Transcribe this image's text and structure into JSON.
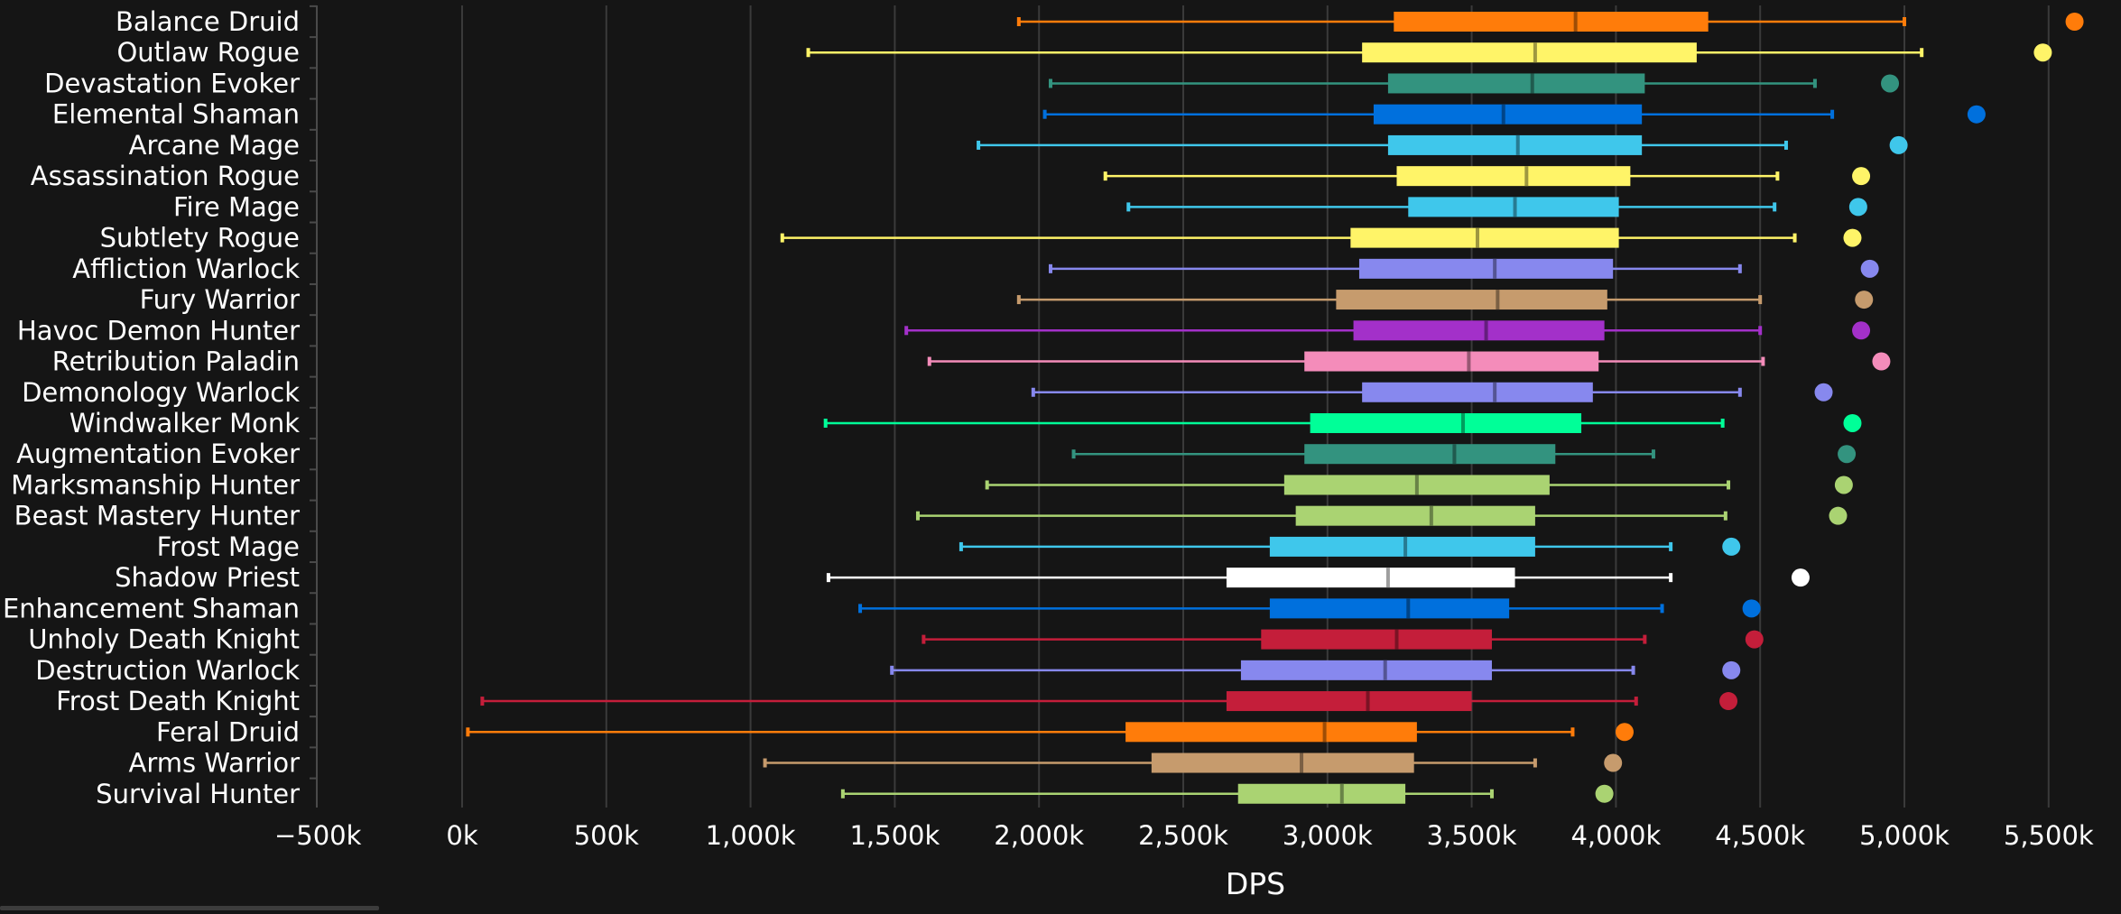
{
  "chart_data": {
    "type": "box",
    "orientation": "horizontal",
    "xlabel": "DPS",
    "xlim": [
      -500000,
      5700000
    ],
    "xticks": [
      -500000,
      0,
      500000,
      1000000,
      1500000,
      2000000,
      2500000,
      3000000,
      3500000,
      4000000,
      4500000,
      5000000,
      5500000
    ],
    "xtick_labels": [
      "−500k",
      "0k",
      "500k",
      "1,000k",
      "1,500k",
      "2,000k",
      "2,500k",
      "3,000k",
      "3,500k",
      "4,000k",
      "4,500k",
      "5,000k",
      "5,500k"
    ],
    "grid": "vertical",
    "series": [
      {
        "label": "Balance Druid",
        "color": "#FF7C0A",
        "min": 1930000,
        "q1": 3230000,
        "median": 3860000,
        "q3": 4320000,
        "max": 5000000,
        "outlier": 5590000
      },
      {
        "label": "Outlaw Rogue",
        "color": "#FFF468",
        "min": 1200000,
        "q1": 3120000,
        "median": 3720000,
        "q3": 4280000,
        "max": 5060000,
        "outlier": 5480000
      },
      {
        "label": "Devastation Evoker",
        "color": "#33937F",
        "min": 2040000,
        "q1": 3210000,
        "median": 3710000,
        "q3": 4100000,
        "max": 4690000,
        "outlier": 4950000
      },
      {
        "label": "Elemental Shaman",
        "color": "#0070DD",
        "min": 2020000,
        "q1": 3160000,
        "median": 3610000,
        "q3": 4090000,
        "max": 4750000,
        "outlier": 5250000
      },
      {
        "label": "Arcane Mage",
        "color": "#3FC7EB",
        "min": 1790000,
        "q1": 3210000,
        "median": 3660000,
        "q3": 4090000,
        "max": 4590000,
        "outlier": 4980000
      },
      {
        "label": "Assassination Rogue",
        "color": "#FFF468",
        "min": 2230000,
        "q1": 3240000,
        "median": 3690000,
        "q3": 4050000,
        "max": 4560000,
        "outlier": 4850000
      },
      {
        "label": "Fire Mage",
        "color": "#3FC7EB",
        "min": 2310000,
        "q1": 3280000,
        "median": 3650000,
        "q3": 4010000,
        "max": 4550000,
        "outlier": 4840000
      },
      {
        "label": "Subtlety Rogue",
        "color": "#FFF468",
        "min": 1110000,
        "q1": 3080000,
        "median": 3520000,
        "q3": 4010000,
        "max": 4620000,
        "outlier": 4820000
      },
      {
        "label": "Affliction Warlock",
        "color": "#8788EE",
        "min": 2040000,
        "q1": 3110000,
        "median": 3580000,
        "q3": 3990000,
        "max": 4430000,
        "outlier": 4880000
      },
      {
        "label": "Fury Warrior",
        "color": "#C69B6D",
        "min": 1930000,
        "q1": 3030000,
        "median": 3590000,
        "q3": 3970000,
        "max": 4500000,
        "outlier": 4860000
      },
      {
        "label": "Havoc Demon Hunter",
        "color": "#A330C9",
        "min": 1540000,
        "q1": 3090000,
        "median": 3550000,
        "q3": 3960000,
        "max": 4500000,
        "outlier": 4850000
      },
      {
        "label": "Retribution Paladin",
        "color": "#F48CBA",
        "min": 1620000,
        "q1": 2920000,
        "median": 3490000,
        "q3": 3940000,
        "max": 4510000,
        "outlier": 4920000
      },
      {
        "label": "Demonology Warlock",
        "color": "#8788EE",
        "min": 1980000,
        "q1": 3120000,
        "median": 3580000,
        "q3": 3920000,
        "max": 4430000,
        "outlier": 4720000
      },
      {
        "label": "Windwalker Monk",
        "color": "#00FF98",
        "min": 1260000,
        "q1": 2940000,
        "median": 3470000,
        "q3": 3880000,
        "max": 4370000,
        "outlier": 4820000
      },
      {
        "label": "Augmentation Evoker",
        "color": "#33937F",
        "min": 2120000,
        "q1": 2920000,
        "median": 3440000,
        "q3": 3790000,
        "max": 4130000,
        "outlier": 4800000
      },
      {
        "label": "Marksmanship Hunter",
        "color": "#AAD372",
        "min": 1820000,
        "q1": 2850000,
        "median": 3310000,
        "q3": 3770000,
        "max": 4390000,
        "outlier": 4790000
      },
      {
        "label": "Beast Mastery Hunter",
        "color": "#AAD372",
        "min": 1580000,
        "q1": 2890000,
        "median": 3360000,
        "q3": 3720000,
        "max": 4380000,
        "outlier": 4770000
      },
      {
        "label": "Frost Mage",
        "color": "#3FC7EB",
        "min": 1730000,
        "q1": 2800000,
        "median": 3270000,
        "q3": 3720000,
        "max": 4190000,
        "outlier": 4400000
      },
      {
        "label": "Shadow Priest",
        "color": "#FFFFFF",
        "min": 1270000,
        "q1": 2650000,
        "median": 3210000,
        "q3": 3650000,
        "max": 4190000,
        "outlier": 4640000
      },
      {
        "label": "Enhancement Shaman",
        "color": "#0070DD",
        "min": 1380000,
        "q1": 2800000,
        "median": 3280000,
        "q3": 3630000,
        "max": 4160000,
        "outlier": 4470000
      },
      {
        "label": "Unholy Death Knight",
        "color": "#C41E3A",
        "min": 1600000,
        "q1": 2770000,
        "median": 3240000,
        "q3": 3570000,
        "max": 4100000,
        "outlier": 4480000
      },
      {
        "label": "Destruction Warlock",
        "color": "#8788EE",
        "min": 1490000,
        "q1": 2700000,
        "median": 3200000,
        "q3": 3570000,
        "max": 4060000,
        "outlier": 4400000
      },
      {
        "label": "Frost Death Knight",
        "color": "#C41E3A",
        "min": 70000,
        "q1": 2650000,
        "median": 3140000,
        "q3": 3500000,
        "max": 4070000,
        "outlier": 4390000
      },
      {
        "label": "Feral Druid",
        "color": "#FF7C0A",
        "min": 20000,
        "q1": 2300000,
        "median": 2990000,
        "q3": 3310000,
        "max": 3850000,
        "outlier": 4030000
      },
      {
        "label": "Arms Warrior",
        "color": "#C69B6D",
        "min": 1050000,
        "q1": 2390000,
        "median": 2910000,
        "q3": 3300000,
        "max": 3720000,
        "outlier": 3990000
      },
      {
        "label": "Survival Hunter",
        "color": "#AAD372",
        "min": 1320000,
        "q1": 2690000,
        "median": 3050000,
        "q3": 3270000,
        "max": 3570000,
        "outlier": 3960000
      }
    ]
  }
}
